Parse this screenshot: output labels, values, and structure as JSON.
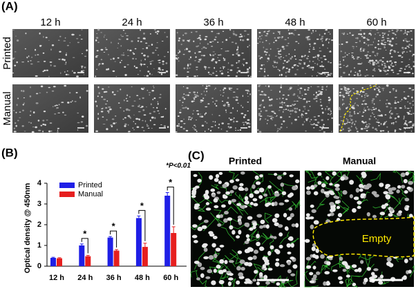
{
  "panel_a": {
    "label": "(A)",
    "columns": [
      "12 h",
      "24 h",
      "36 h",
      "48 h",
      "60 h"
    ],
    "rows": [
      "Printed",
      "Manual"
    ]
  },
  "chart_data": {
    "type": "bar",
    "label": "(B)",
    "annotation": "*P<0.01",
    "y_label": "Optical density @ 450nm",
    "categories": [
      "12 h",
      "24 h",
      "36 h",
      "48 h",
      "60 h"
    ],
    "series": [
      {
        "name": "Printed",
        "color": "#1f1fe6",
        "values": [
          0.4,
          1.0,
          1.38,
          2.32,
          3.4
        ],
        "errors": [
          0.03,
          0.07,
          0.05,
          0.1,
          0.15
        ]
      },
      {
        "name": "Manual",
        "color": "#e61f1f",
        "values": [
          0.38,
          0.48,
          0.75,
          0.93,
          1.6
        ],
        "errors": [
          0.03,
          0.04,
          0.05,
          0.18,
          0.3
        ]
      }
    ],
    "significance": [
      null,
      "*",
      "*",
      "*",
      "*"
    ],
    "ylim": [
      0,
      4
    ],
    "yticks": [
      0,
      1,
      2,
      3,
      4
    ]
  },
  "panel_c": {
    "label": "(C)",
    "images": [
      {
        "title": "Printed"
      },
      {
        "title": "Manual",
        "annotation": "Empty"
      }
    ]
  }
}
